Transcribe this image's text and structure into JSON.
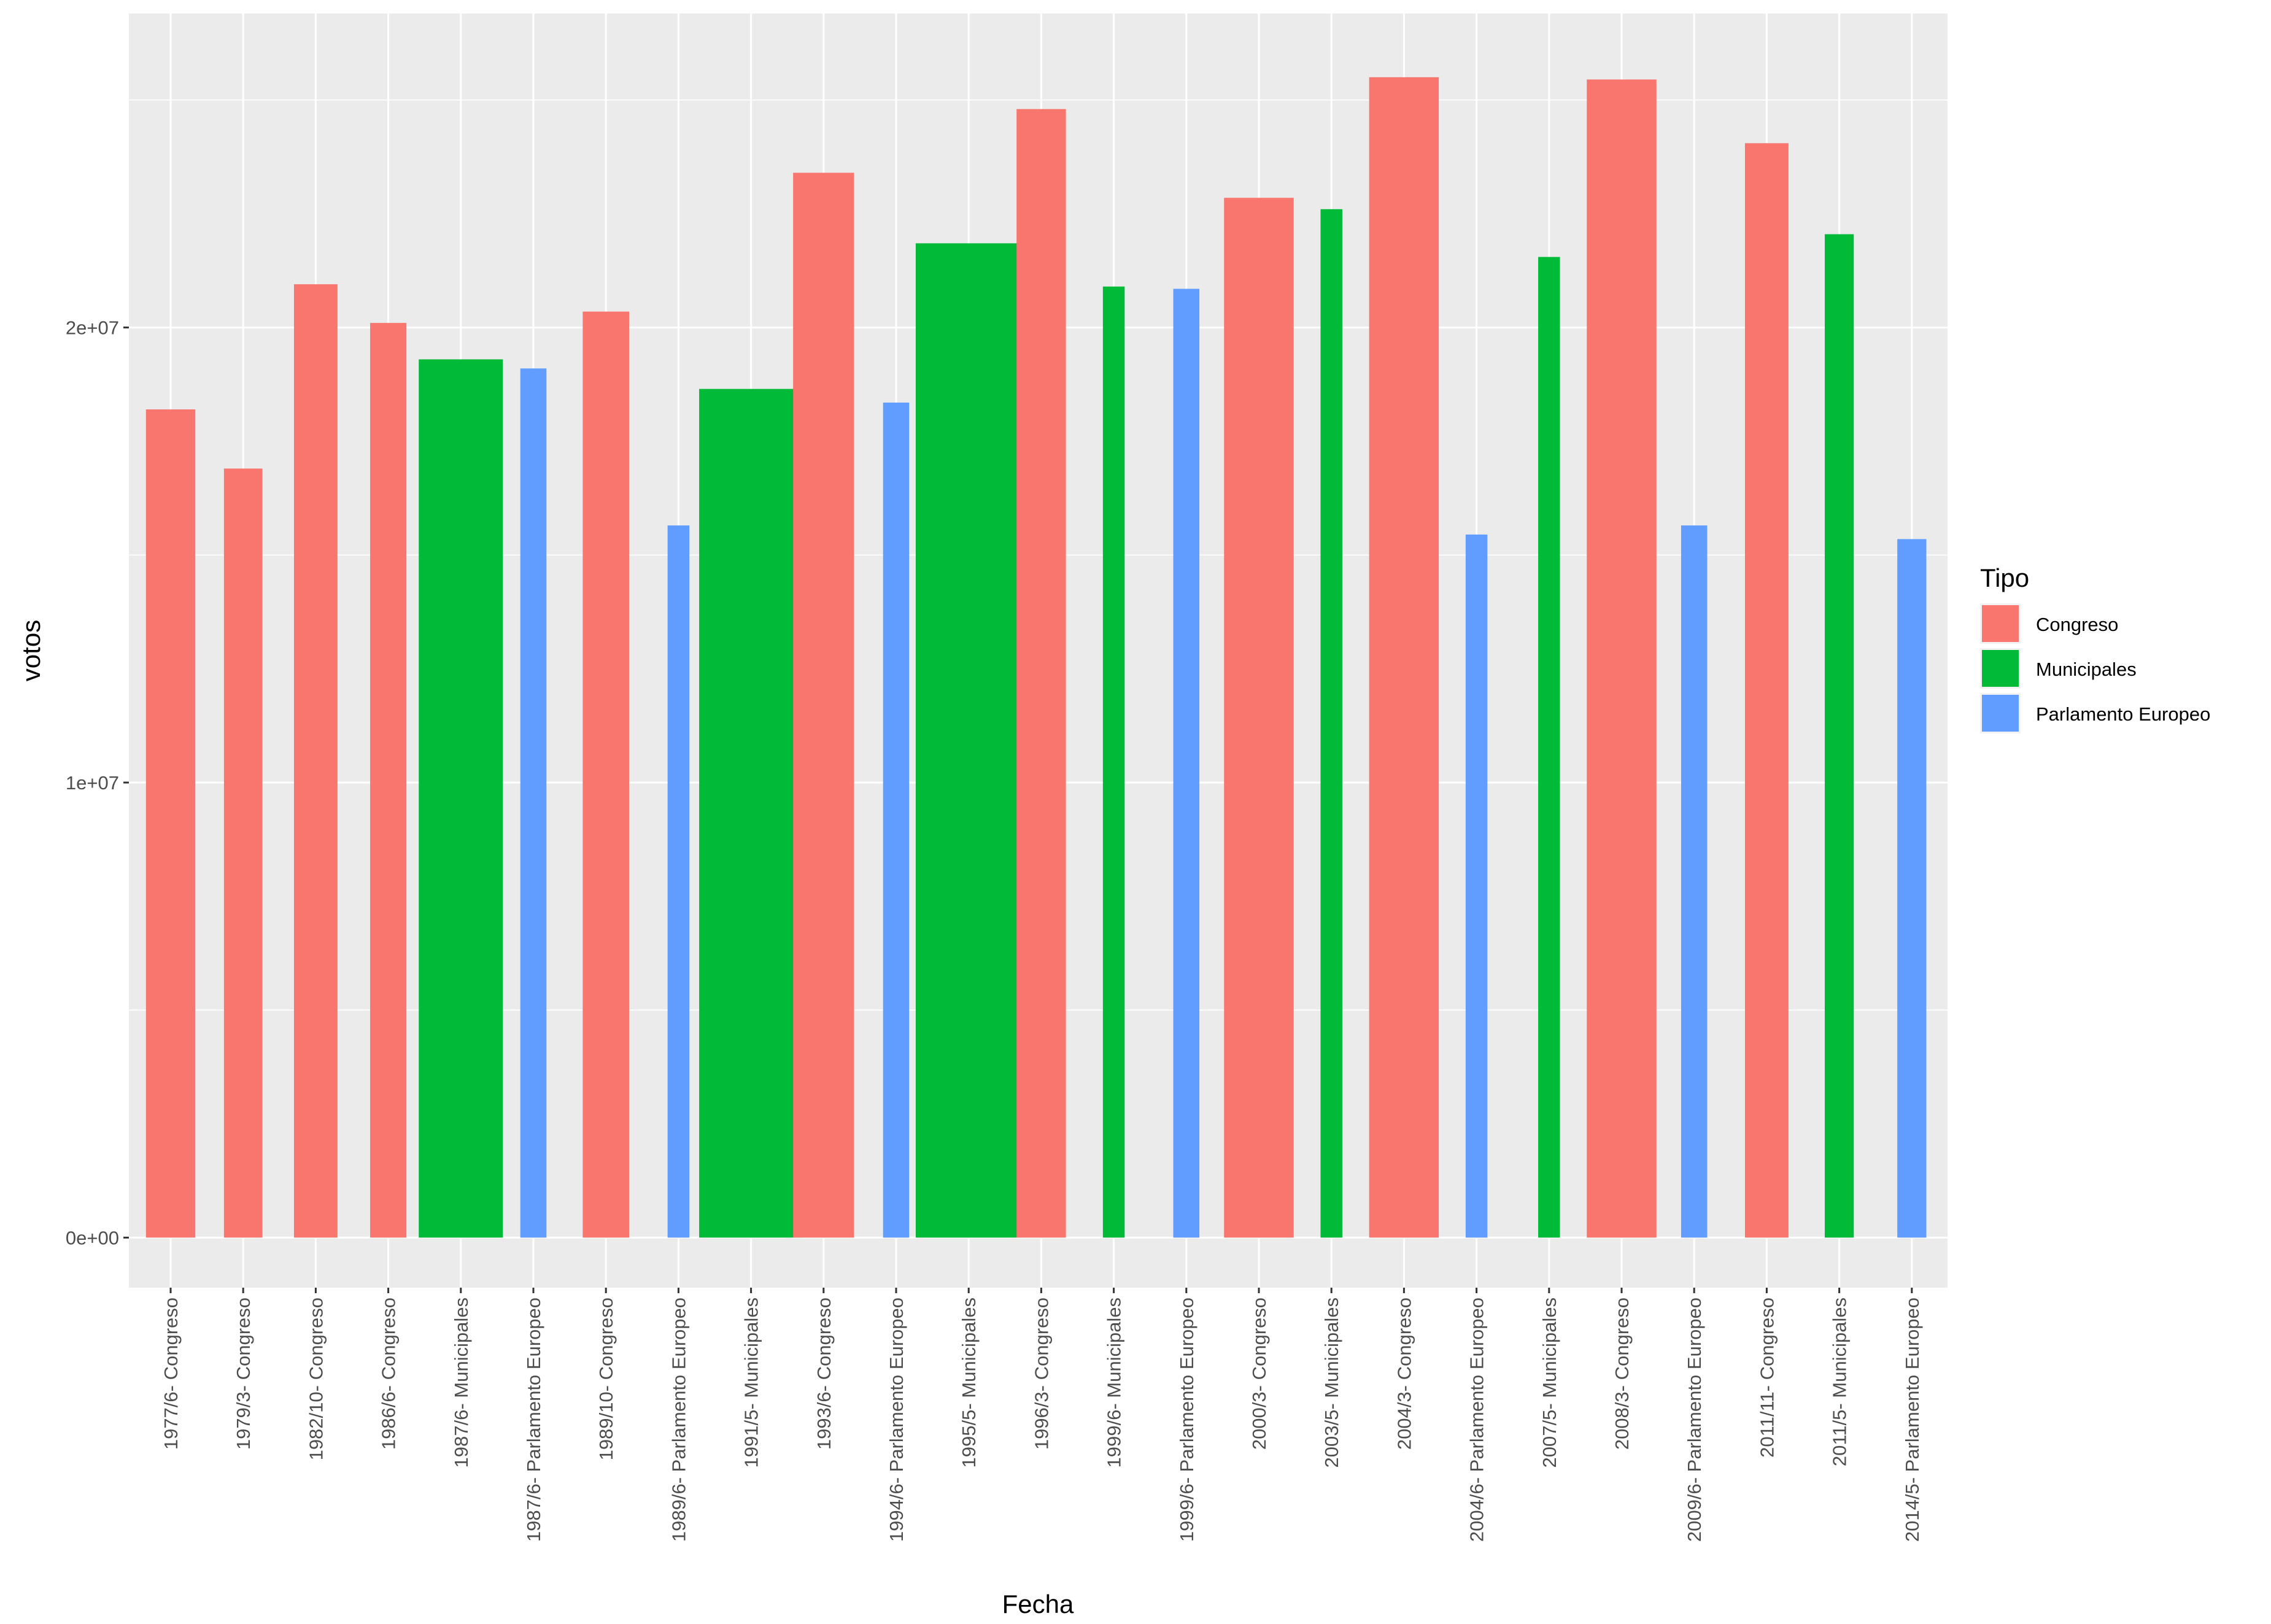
{
  "chart_data": {
    "type": "bar",
    "xlabel": "Fecha",
    "ylabel": "votos",
    "ylim": [
      -1100000,
      26900000
    ],
    "yticks": [
      {
        "value": 0,
        "label": "0e+00"
      },
      {
        "value": 10000000,
        "label": "1e+07"
      },
      {
        "value": 20000000,
        "label": "2e+07"
      }
    ],
    "grid": true,
    "legend": {
      "title": "Tipo",
      "position": "right",
      "entries": [
        {
          "name": "Congreso",
          "color": "#F8766D"
        },
        {
          "name": "Municipales",
          "color": "#00BA38"
        },
        {
          "name": "Parlamento Europeo",
          "color": "#619CFF"
        }
      ]
    },
    "categories": [
      "1977/6- Congreso",
      "1979/3- Congreso",
      "1982/10- Congreso",
      "1986/6- Congreso",
      "1987/6- Municipales",
      "1987/6- Parlamento Europeo",
      "1989/10- Congreso",
      "1989/6- Parlamento Europeo",
      "1991/5- Municipales",
      "1993/6- Congreso",
      "1994/6- Parlamento Europeo",
      "1995/5- Municipales",
      "1996/3- Congreso",
      "1999/6- Municipales",
      "1999/6- Parlamento Europeo",
      "2000/3- Congreso",
      "2003/5- Municipales",
      "2004/3- Congreso",
      "2004/6- Parlamento Europeo",
      "2007/5- Municipales",
      "2008/3- Congreso",
      "2009/6- Parlamento Europeo",
      "2011/11- Congreso",
      "2011/5- Municipales",
      "2014/5- Parlamento Europeo"
    ],
    "bars": [
      {
        "category": "1977/6- Congreso",
        "tipo": "Congreso",
        "votos": 18200000,
        "width": 0.68
      },
      {
        "category": "1979/3- Congreso",
        "tipo": "Congreso",
        "votos": 16900000,
        "width": 0.53
      },
      {
        "category": "1982/10- Congreso",
        "tipo": "Congreso",
        "votos": 20950000,
        "width": 0.6
      },
      {
        "category": "1986/6- Congreso",
        "tipo": "Congreso",
        "votos": 20100000,
        "width": 0.5
      },
      {
        "category": "1987/6- Municipales",
        "tipo": "Municipales",
        "votos": 19300000,
        "width": 1.16
      },
      {
        "category": "1987/6- Parlamento Europeo",
        "tipo": "Parlamento Europeo",
        "votos": 19100000,
        "width": 0.36
      },
      {
        "category": "1989/10- Congreso",
        "tipo": "Congreso",
        "votos": 20350000,
        "width": 0.64
      },
      {
        "category": "1989/6- Parlamento Europeo",
        "tipo": "Parlamento Europeo",
        "votos": 15650000,
        "width": 0.3
      },
      {
        "category": "1991/5- Municipales",
        "tipo": "Municipales",
        "votos": 18650000,
        "width": 1.43
      },
      {
        "category": "1993/6- Congreso",
        "tipo": "Congreso",
        "votos": 23400000,
        "width": 0.84
      },
      {
        "category": "1994/6- Parlamento Europeo",
        "tipo": "Parlamento Europeo",
        "votos": 18350000,
        "width": 0.36
      },
      {
        "category": "1995/5- Municipales",
        "tipo": "Municipales",
        "votos": 21850000,
        "width": 1.46
      },
      {
        "category": "1996/3- Congreso",
        "tipo": "Congreso",
        "votos": 24800000,
        "width": 0.68
      },
      {
        "category": "1999/6- Municipales",
        "tipo": "Municipales",
        "votos": 20900000,
        "width": 0.3
      },
      {
        "category": "1999/6- Parlamento Europeo",
        "tipo": "Parlamento Europeo",
        "votos": 20850000,
        "width": 0.36
      },
      {
        "category": "2000/3- Congreso",
        "tipo": "Congreso",
        "votos": 22850000,
        "width": 0.96
      },
      {
        "category": "2003/5- Municipales",
        "tipo": "Municipales",
        "votos": 22600000,
        "width": 0.3
      },
      {
        "category": "2004/3- Congreso",
        "tipo": "Congreso",
        "votos": 25500000,
        "width": 0.96
      },
      {
        "category": "2004/6- Parlamento Europeo",
        "tipo": "Parlamento Europeo",
        "votos": 15450000,
        "width": 0.3
      },
      {
        "category": "2007/5- Municipales",
        "tipo": "Municipales",
        "votos": 21550000,
        "width": 0.3
      },
      {
        "category": "2008/3- Congreso",
        "tipo": "Congreso",
        "votos": 25450000,
        "width": 0.96
      },
      {
        "category": "2009/6- Parlamento Europeo",
        "tipo": "Parlamento Europeo",
        "votos": 15650000,
        "width": 0.36
      },
      {
        "category": "2011/11- Congreso",
        "tipo": "Congreso",
        "votos": 24050000,
        "width": 0.6
      },
      {
        "category": "2011/5- Municipales",
        "tipo": "Municipales",
        "votos": 22050000,
        "width": 0.4
      },
      {
        "category": "2014/5- Parlamento Europeo",
        "tipo": "Parlamento Europeo",
        "votos": 15350000,
        "width": 0.4
      }
    ]
  }
}
